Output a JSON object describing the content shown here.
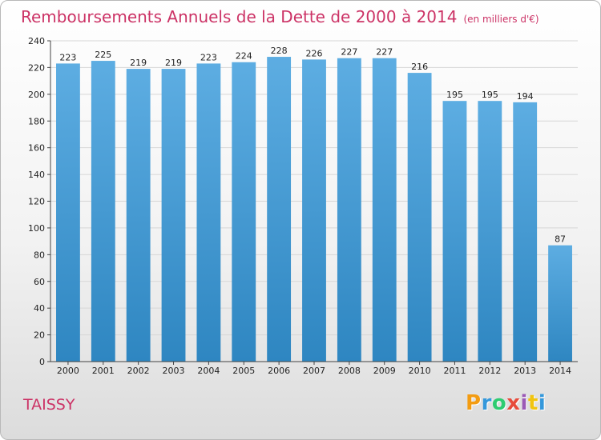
{
  "header": {
    "title": "Remboursements Annuels de la Dette de 2000 à 2014",
    "unit": "(en milliers d'€)"
  },
  "footer": {
    "place": "TAISSY",
    "logo_letters": [
      "P",
      "r",
      "o",
      "x",
      "i",
      "t",
      "i"
    ],
    "logo_colors": [
      "#f39c12",
      "#3498db",
      "#2ecc71",
      "#e74c3c",
      "#9b59b6",
      "#f1c40f",
      "#3498db"
    ]
  },
  "colors": {
    "bar_top": "#5dade2",
    "bar_bottom": "#2e86c1",
    "grid": "#d6d6d6",
    "axis": "#444444"
  },
  "chart_data": {
    "type": "bar",
    "title": "Remboursements Annuels de la Dette de 2000 à 2014",
    "subtitle": "(en milliers d'€)",
    "categories": [
      "2000",
      "2001",
      "2002",
      "2003",
      "2004",
      "2005",
      "2006",
      "2007",
      "2008",
      "2009",
      "2010",
      "2011",
      "2012",
      "2013",
      "2014"
    ],
    "values": [
      223,
      225,
      219,
      219,
      223,
      224,
      228,
      226,
      227,
      227,
      216,
      195,
      195,
      194,
      87
    ],
    "ylim": [
      0,
      240
    ],
    "yticks": [
      0,
      20,
      40,
      60,
      80,
      100,
      120,
      140,
      160,
      180,
      200,
      220,
      240
    ],
    "grid": true,
    "xlabel": "",
    "ylabel": ""
  }
}
